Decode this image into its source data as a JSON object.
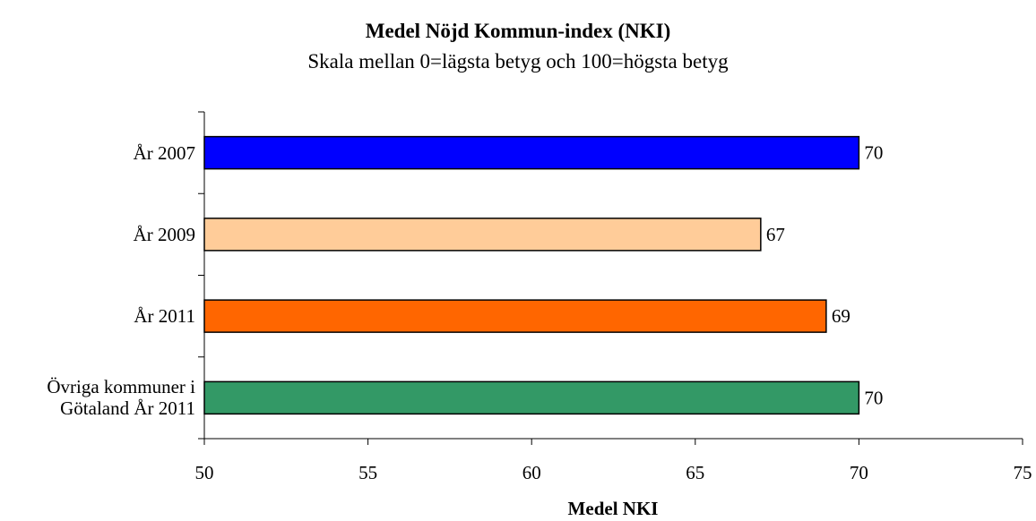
{
  "chart_data": {
    "type": "bar",
    "orientation": "horizontal",
    "title": "Medel Nöjd Kommun-index (NKI)",
    "subtitle": "Skala mellan 0=lägsta betyg och 100=högsta betyg",
    "x_label": "Medel NKI",
    "categories": [
      "År 2007",
      "År 2009",
      "År 2011",
      "Övriga kommuner i Götaland År 2011"
    ],
    "values": [
      70,
      67,
      69,
      70
    ],
    "colors": [
      "#0000ff",
      "#ffcc99",
      "#ff6600",
      "#339966"
    ],
    "xlim": [
      50,
      75
    ],
    "xticks": [
      50,
      55,
      60,
      65,
      70,
      75
    ],
    "grid": false
  }
}
